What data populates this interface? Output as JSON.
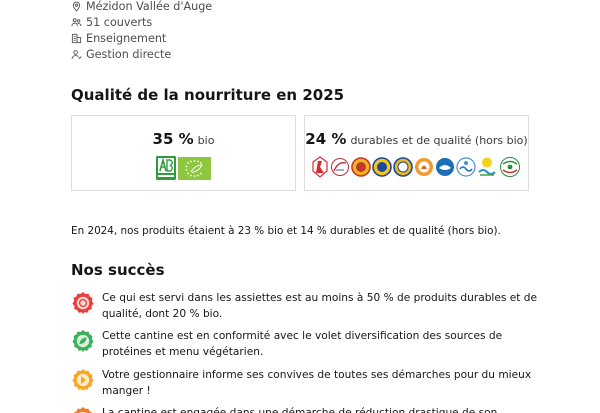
{
  "meta": {
    "location": "Mézidon Vallée d'Auge",
    "covers": "51 couverts",
    "sector": "Enseignement",
    "management": "Gestion directe"
  },
  "quality": {
    "title": "Qualité de la nourriture en 2025",
    "bio": {
      "percent": "35 %",
      "label": "bio"
    },
    "durable": {
      "percent": "24 %",
      "label": "durables et de qualité (hors bio)"
    },
    "previous_year": "En 2024, nos produits étaient à 23 % bio et 14 % durables et de qualité (hors bio)."
  },
  "successes": {
    "title": "Nos succès",
    "items": [
      {
        "text": "Ce qui est servi dans les assiettes est au moins à 50 % de produits durables et de qualité, dont 20 % bio.",
        "color": "#e8403f",
        "icon": "seal-icon"
      },
      {
        "text": "Cette cantine est en conformité avec le volet diversification des sources de protéines et menu végétarien.",
        "color": "#3bb15b",
        "icon": "leaf-icon"
      },
      {
        "text": "Votre gestionnaire informe ses convives de toutes ses démarches pour du mieux manger !",
        "color": "#f5a623",
        "icon": "info-icon"
      },
      {
        "text": "La cantine est engagée dans une démarche de réduction drastique de son",
        "color": "#f07c2a",
        "icon": "waste-icon"
      }
    ]
  }
}
